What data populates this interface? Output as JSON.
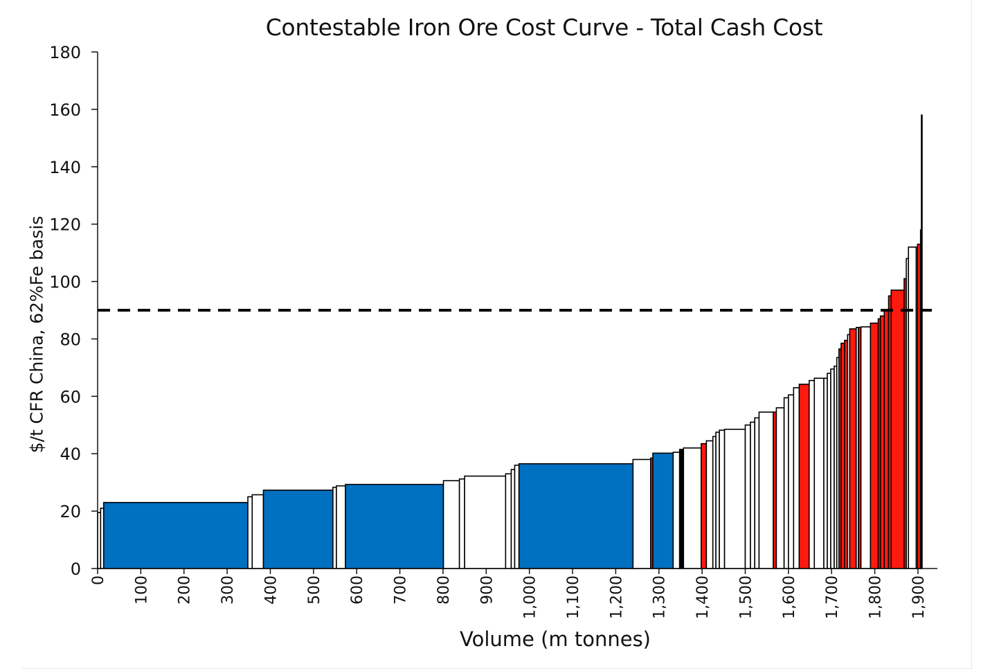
{
  "chart_data": {
    "type": "bar",
    "title": "Contestable Iron Ore Cost Curve - Total Cash Cost",
    "xlabel": "Volume (m tonnes)",
    "ylabel": "$/t CFR China, 62%Fe basis",
    "xlim": [
      0,
      1945
    ],
    "ylim": [
      0,
      180
    ],
    "yticks": [
      0,
      20,
      40,
      60,
      80,
      100,
      120,
      140,
      160,
      180
    ],
    "xticks": [
      0,
      100,
      200,
      300,
      400,
      500,
      600,
      700,
      800,
      900,
      1000,
      1100,
      1200,
      1300,
      1400,
      1500,
      1600,
      1700,
      1800,
      1900
    ],
    "xtick_labels": [
      "0",
      "100",
      "200",
      "300",
      "400",
      "500",
      "600",
      "700",
      "800",
      "900",
      "1,000",
      "1,100",
      "1,200",
      "1,300",
      "1,400",
      "1,500",
      "1,600",
      "1,700",
      "1,800",
      "1,900"
    ],
    "reference_line": {
      "y": 90,
      "style": "dashed",
      "color": "#000000"
    },
    "colors": {
      "blue": "#0070C0",
      "red": "#FF1A10",
      "white": "#FFFFFF",
      "outline": "#000000"
    },
    "grid": false,
    "legend": "none",
    "blocks": [
      {
        "x0": 0,
        "x1": 7,
        "cost": 19.5,
        "color": "white"
      },
      {
        "x0": 7,
        "x1": 14,
        "cost": 21,
        "color": "white"
      },
      {
        "x0": 14,
        "x1": 348,
        "cost": 23,
        "color": "blue"
      },
      {
        "x0": 348,
        "x1": 358,
        "cost": 25,
        "color": "white"
      },
      {
        "x0": 358,
        "x1": 384,
        "cost": 25.7,
        "color": "white"
      },
      {
        "x0": 384,
        "x1": 545,
        "cost": 27.3,
        "color": "blue"
      },
      {
        "x0": 545,
        "x1": 553,
        "cost": 28.3,
        "color": "white"
      },
      {
        "x0": 553,
        "x1": 574,
        "cost": 28.8,
        "color": "white"
      },
      {
        "x0": 574,
        "x1": 801,
        "cost": 29.3,
        "color": "blue"
      },
      {
        "x0": 801,
        "x1": 838,
        "cost": 30.6,
        "color": "white"
      },
      {
        "x0": 838,
        "x1": 850,
        "cost": 31.2,
        "color": "white"
      },
      {
        "x0": 850,
        "x1": 945,
        "cost": 32.2,
        "color": "white"
      },
      {
        "x0": 945,
        "x1": 958,
        "cost": 33,
        "color": "white"
      },
      {
        "x0": 958,
        "x1": 966,
        "cost": 34.5,
        "color": "white"
      },
      {
        "x0": 966,
        "x1": 976,
        "cost": 36,
        "color": "white"
      },
      {
        "x0": 976,
        "x1": 1240,
        "cost": 36.5,
        "color": "blue"
      },
      {
        "x0": 1240,
        "x1": 1281,
        "cost": 38,
        "color": "white"
      },
      {
        "x0": 1281,
        "x1": 1286,
        "cost": 38.5,
        "color": "red"
      },
      {
        "x0": 1286,
        "x1": 1333,
        "cost": 40.2,
        "color": "blue"
      },
      {
        "x0": 1333,
        "x1": 1348,
        "cost": 40.5,
        "color": "white"
      },
      {
        "x0": 1348,
        "x1": 1357,
        "cost": 41.5,
        "color": "black"
      },
      {
        "x0": 1357,
        "x1": 1398,
        "cost": 42,
        "color": "white"
      },
      {
        "x0": 1398,
        "x1": 1410,
        "cost": 43.5,
        "color": "red"
      },
      {
        "x0": 1410,
        "x1": 1425,
        "cost": 44.5,
        "color": "white"
      },
      {
        "x0": 1425,
        "x1": 1432,
        "cost": 46,
        "color": "white"
      },
      {
        "x0": 1432,
        "x1": 1440,
        "cost": 47.5,
        "color": "white"
      },
      {
        "x0": 1440,
        "x1": 1452,
        "cost": 48.2,
        "color": "white"
      },
      {
        "x0": 1452,
        "x1": 1500,
        "cost": 48.5,
        "color": "white"
      },
      {
        "x0": 1500,
        "x1": 1512,
        "cost": 50,
        "color": "white"
      },
      {
        "x0": 1512,
        "x1": 1522,
        "cost": 51,
        "color": "white"
      },
      {
        "x0": 1522,
        "x1": 1532,
        "cost": 52.5,
        "color": "white"
      },
      {
        "x0": 1532,
        "x1": 1565,
        "cost": 54.5,
        "color": "white"
      },
      {
        "x0": 1565,
        "x1": 1572,
        "cost": 54.5,
        "color": "red"
      },
      {
        "x0": 1572,
        "x1": 1590,
        "cost": 56,
        "color": "white"
      },
      {
        "x0": 1590,
        "x1": 1600,
        "cost": 59.5,
        "color": "white"
      },
      {
        "x0": 1600,
        "x1": 1612,
        "cost": 60.5,
        "color": "white"
      },
      {
        "x0": 1612,
        "x1": 1625,
        "cost": 63,
        "color": "white"
      },
      {
        "x0": 1625,
        "x1": 1648,
        "cost": 64.2,
        "color": "red"
      },
      {
        "x0": 1648,
        "x1": 1660,
        "cost": 65.5,
        "color": "white"
      },
      {
        "x0": 1660,
        "x1": 1682,
        "cost": 66.3,
        "color": "white"
      },
      {
        "x0": 1682,
        "x1": 1690,
        "cost": 66.3,
        "color": "white"
      },
      {
        "x0": 1690,
        "x1": 1698,
        "cost": 68,
        "color": "white"
      },
      {
        "x0": 1698,
        "x1": 1706,
        "cost": 69.5,
        "color": "white"
      },
      {
        "x0": 1706,
        "x1": 1712,
        "cost": 70.5,
        "color": "white"
      },
      {
        "x0": 1712,
        "x1": 1717,
        "cost": 73.5,
        "color": "white"
      },
      {
        "x0": 1717,
        "x1": 1722,
        "cost": 76.5,
        "color": "red"
      },
      {
        "x0": 1722,
        "x1": 1730,
        "cost": 78.5,
        "color": "red"
      },
      {
        "x0": 1730,
        "x1": 1737,
        "cost": 79.5,
        "color": "red"
      },
      {
        "x0": 1737,
        "x1": 1742,
        "cost": 81.5,
        "color": "white"
      },
      {
        "x0": 1742,
        "x1": 1757,
        "cost": 83.5,
        "color": "red"
      },
      {
        "x0": 1757,
        "x1": 1762,
        "cost": 84,
        "color": "white"
      },
      {
        "x0": 1762,
        "x1": 1768,
        "cost": 84,
        "color": "red"
      },
      {
        "x0": 1768,
        "x1": 1790,
        "cost": 84.2,
        "color": "white"
      },
      {
        "x0": 1790,
        "x1": 1808,
        "cost": 85.5,
        "color": "red"
      },
      {
        "x0": 1808,
        "x1": 1813,
        "cost": 87,
        "color": "red"
      },
      {
        "x0": 1813,
        "x1": 1822,
        "cost": 88,
        "color": "red"
      },
      {
        "x0": 1822,
        "x1": 1832,
        "cost": 90,
        "color": "red"
      },
      {
        "x0": 1832,
        "x1": 1838,
        "cost": 95,
        "color": "red"
      },
      {
        "x0": 1838,
        "x1": 1868,
        "cost": 97,
        "color": "red"
      },
      {
        "x0": 1868,
        "x1": 1873,
        "cost": 101,
        "color": "red"
      },
      {
        "x0": 1873,
        "x1": 1878,
        "cost": 108,
        "color": "white"
      },
      {
        "x0": 1878,
        "x1": 1896,
        "cost": 112,
        "color": "white"
      },
      {
        "x0": 1896,
        "x1": 1899,
        "cost": 112,
        "color": "white"
      },
      {
        "x0": 1899,
        "x1": 1906,
        "cost": 113,
        "color": "red"
      },
      {
        "x0": 1906,
        "x1": 1908,
        "cost": 118,
        "color": "white"
      },
      {
        "x0": 1908,
        "x1": 1909,
        "cost": 158,
        "color": "white"
      }
    ]
  }
}
